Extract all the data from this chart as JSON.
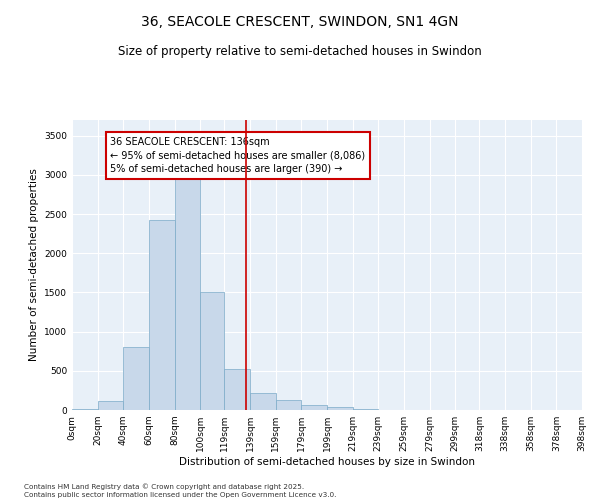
{
  "title": "36, SEACOLE CRESCENT, SWINDON, SN1 4GN",
  "subtitle": "Size of property relative to semi-detached houses in Swindon",
  "xlabel": "Distribution of semi-detached houses by size in Swindon",
  "ylabel": "Number of semi-detached properties",
  "bar_color": "#c8d8ea",
  "bar_edge_color": "#7aaac8",
  "vline_x": 136,
  "vline_color": "#cc0000",
  "annotation_text": "36 SEACOLE CRESCENT: 136sqm\n← 95% of semi-detached houses are smaller (8,086)\n5% of semi-detached houses are larger (390) →",
  "annotation_box_color": "#cc0000",
  "bin_edges": [
    0,
    20,
    40,
    60,
    80,
    100,
    119,
    139,
    159,
    179,
    199,
    219,
    239,
    259,
    279,
    299,
    318,
    338,
    358,
    378,
    398
  ],
  "bin_labels": [
    "0sqm",
    "20sqm",
    "40sqm",
    "60sqm",
    "80sqm",
    "100sqm",
    "119sqm",
    "139sqm",
    "159sqm",
    "179sqm",
    "199sqm",
    "219sqm",
    "239sqm",
    "259sqm",
    "279sqm",
    "299sqm",
    "318sqm",
    "338sqm",
    "358sqm",
    "378sqm",
    "398sqm"
  ],
  "bar_heights": [
    15,
    110,
    800,
    2430,
    3000,
    1500,
    520,
    220,
    130,
    70,
    40,
    10,
    5,
    3,
    2,
    1,
    0,
    0,
    0,
    0
  ],
  "ylim": [
    0,
    3700
  ],
  "yticks": [
    0,
    500,
    1000,
    1500,
    2000,
    2500,
    3000,
    3500
  ],
  "background_color": "#e8f0f8",
  "footer_text": "Contains HM Land Registry data © Crown copyright and database right 2025.\nContains public sector information licensed under the Open Government Licence v3.0.",
  "title_fontsize": 10,
  "subtitle_fontsize": 8.5,
  "axis_label_fontsize": 7.5,
  "tick_fontsize": 6.5,
  "annot_fontsize": 7
}
